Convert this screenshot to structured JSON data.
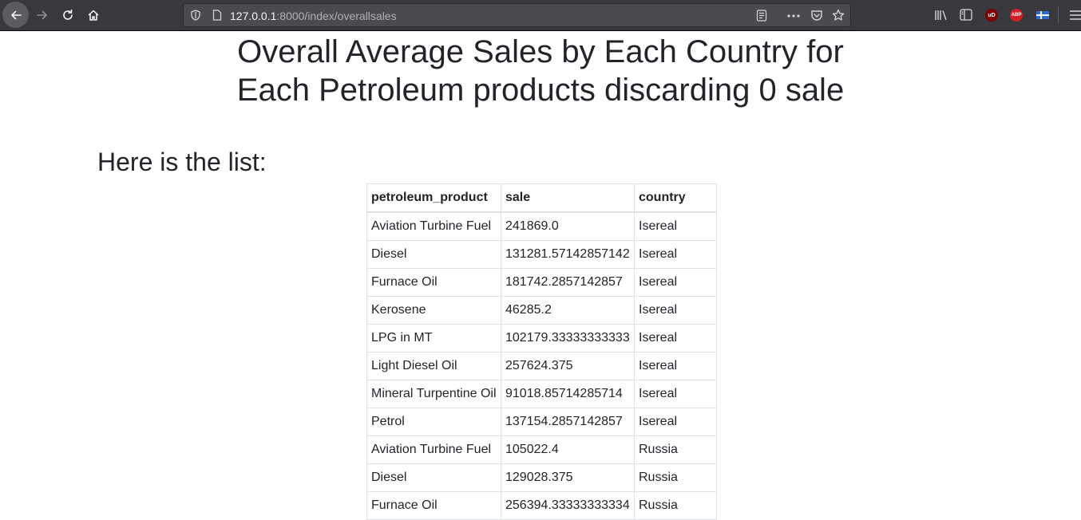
{
  "browser": {
    "url_host": "127.0.0.1",
    "url_rest": ":8000/index/overallsales",
    "extensions": [
      {
        "name": "ublock",
        "label": "uD",
        "color": "#b5141b"
      },
      {
        "name": "adblock-plus",
        "label": "ABP",
        "color": "#d61d25"
      }
    ]
  },
  "page": {
    "title_line1": "Overall Average Sales by Each Country for",
    "title_line2": "Each Petroleum products discarding 0 sale",
    "list_heading": "Here is the list:"
  },
  "table": {
    "headers": [
      "petroleum_product",
      "sale",
      "country"
    ],
    "rows": [
      [
        "Aviation Turbine Fuel",
        "241869.0",
        "Isereal"
      ],
      [
        "Diesel",
        "131281.57142857142",
        "Isereal"
      ],
      [
        "Furnace Oil",
        "181742.2857142857",
        "Isereal"
      ],
      [
        "Kerosene",
        "46285.2",
        "Isereal"
      ],
      [
        "LPG in MT",
        "102179.33333333333",
        "Isereal"
      ],
      [
        "Light Diesel Oil",
        "257624.375",
        "Isereal"
      ],
      [
        "Mineral Turpentine Oil",
        "91018.85714285714",
        "Isereal"
      ],
      [
        "Petrol",
        "137154.2857142857",
        "Isereal"
      ],
      [
        "Aviation Turbine Fuel",
        "105022.4",
        "Russia"
      ],
      [
        "Diesel",
        "129028.375",
        "Russia"
      ],
      [
        "Furnace Oil",
        "256394.33333333334",
        "Russia"
      ]
    ]
  }
}
